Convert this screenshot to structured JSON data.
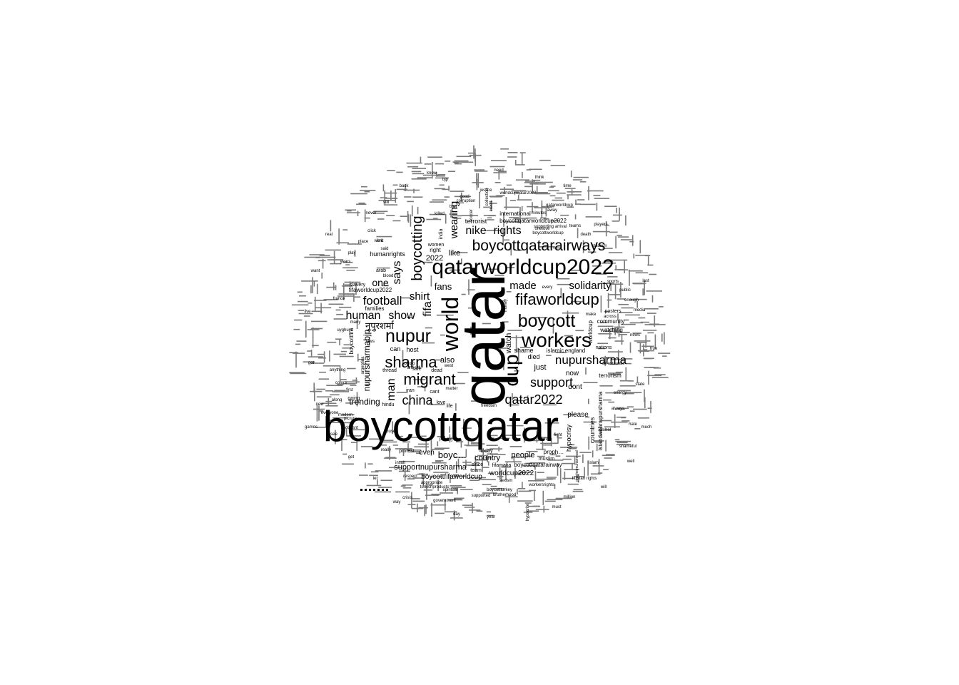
{
  "word_cloud": {
    "words": [
      {
        "text": "boycottqatar",
        "weight": 100
      },
      {
        "text": "qatar",
        "weight": 98
      },
      {
        "text": "qatarworldcup2022",
        "weight": 45
      },
      {
        "text": "workers",
        "weight": 38
      },
      {
        "text": "world",
        "weight": 36
      },
      {
        "text": "boycott",
        "weight": 36
      },
      {
        "text": "nupur",
        "weight": 34
      },
      {
        "text": "sharma",
        "weight": 34
      },
      {
        "text": "migrant",
        "weight": 32
      },
      {
        "text": "cup",
        "weight": 32
      },
      {
        "text": "fifaworldcup",
        "weight": 31
      },
      {
        "text": "boycottqatarairways",
        "weight": 29
      },
      {
        "text": "boycotting",
        "weight": 28
      },
      {
        "text": "china",
        "weight": 26
      },
      {
        "text": "support",
        "weight": 26
      },
      {
        "text": "qatar2022",
        "weight": 26
      },
      {
        "text": "nupursharma",
        "weight": 25
      },
      {
        "text": "football",
        "weight": 24
      },
      {
        "text": "human",
        "weight": 23
      },
      {
        "text": "show",
        "weight": 23
      },
      {
        "text": "says",
        "weight": 22
      },
      {
        "text": "fifa",
        "weight": 22
      },
      {
        "text": "man",
        "weight": 22
      },
      {
        "text": "nike",
        "weight": 22
      },
      {
        "text": "rights",
        "weight": 22
      },
      {
        "text": "shirt",
        "weight": 21
      },
      {
        "text": "wearing",
        "weight": 21
      },
      {
        "text": "made",
        "weight": 21
      },
      {
        "text": "solidarity",
        "weight": 21
      },
      {
        "text": "one",
        "weight": 20
      },
      {
        "text": "fans",
        "weight": 20
      },
      {
        "text": "नुपुरशर्मा",
        "weight": 19
      },
      {
        "text": "trending",
        "weight": 16
      },
      {
        "text": "nupursharmabjp",
        "weight": 15
      },
      {
        "text": "boycottfifaworldcup",
        "weight": 14
      },
      {
        "text": "supportnupursharma",
        "weight": 14
      },
      {
        "text": "worldcup2022",
        "weight": 14
      },
      {
        "text": "people",
        "weight": 14
      },
      {
        "text": "country",
        "weight": 14
      },
      {
        "text": "just",
        "weight": 14
      },
      {
        "text": "2022",
        "weight": 14
      },
      {
        "text": "like",
        "weight": 14
      },
      {
        "text": "also",
        "weight": 14
      },
      {
        "text": "even",
        "weight": 13
      },
      {
        "text": "boyc…",
        "weight": 15
      },
      {
        "text": "watch",
        "weight": 14
      },
      {
        "text": "now",
        "weight": 13
      },
      {
        "text": "dont",
        "weight": 13
      },
      {
        "text": "please",
        "weight": 13
      },
      {
        "text": "countries",
        "weight": 12
      },
      {
        "text": "hypocrisy",
        "weight": 12
      },
      {
        "text": "istandwithnupursharma",
        "weight": 11
      },
      {
        "text": "boycottqatarworldcup2022",
        "weight": 10
      },
      {
        "text": "humanrights",
        "weight": 11
      },
      {
        "text": "terrorist",
        "weight": 11
      },
      {
        "text": "international",
        "weight": 10
      },
      {
        "text": "shame",
        "weight": 11
      },
      {
        "text": "died",
        "weight": 11
      },
      {
        "text": "islamic",
        "weight": 10
      },
      {
        "text": "england",
        "weight": 10
      },
      {
        "text": "host",
        "weight": 11
      },
      {
        "text": "can",
        "weight": 11
      },
      {
        "text": "families",
        "weight": 10
      },
      {
        "text": "boycottfifa",
        "weight": 11
      },
      {
        "text": "fifaworldcup2022",
        "weight": 10
      },
      {
        "text": "boycottqatarairway",
        "weight": 10
      },
      {
        "text": "worldcup",
        "weight": 10
      },
      {
        "text": "community",
        "weight": 10
      },
      {
        "text": "watching",
        "weight": 10
      },
      {
        "text": "terrorism",
        "weight": 10
      },
      {
        "text": "nations",
        "weight": 9
      },
      {
        "text": "posters",
        "weight": 9
      },
      {
        "text": "proph…",
        "weight": 10
      },
      {
        "text": "right",
        "weight": 10
      },
      {
        "text": "women",
        "weight": 9
      },
      {
        "text": "thread",
        "weight": 9
      },
      {
        "text": "iran",
        "weight": 9
      },
      {
        "text": "hindu",
        "weight": 9
      },
      {
        "text": "since",
        "weight": 9
      },
      {
        "text": "team",
        "weight": 9
      },
      {
        "text": "today",
        "weight": 9
      },
      {
        "text": "muslim",
        "weight": 9
      },
      {
        "text": "arab",
        "weight": 9
      },
      {
        "text": "slavery",
        "weight": 9
      },
      {
        "text": "going",
        "weight": 9
      },
      {
        "text": "love",
        "weight": 9
      },
      {
        "text": "life",
        "weight": 9
      },
      {
        "text": "safe",
        "weight": 9
      },
      {
        "text": "dead",
        "weight": 9
      },
      {
        "text": "cant",
        "weight": 9
      },
      {
        "text": "protest",
        "weight": 9
      },
      {
        "text": "west",
        "weight": 9
      },
      {
        "text": "good",
        "weight": 8
      },
      {
        "text": "justice",
        "weight": 8
      },
      {
        "text": "bjp",
        "weight": 8
      },
      {
        "text": "india",
        "weight": 8
      },
      {
        "text": "killed",
        "weight": 8
      },
      {
        "text": "money",
        "weight": 8
      },
      {
        "text": "death",
        "weight": 8
      },
      {
        "text": "stand",
        "weight": 8
      },
      {
        "text": "many",
        "weight": 8
      },
      {
        "text": "uyghurs",
        "weight": 8
      },
      {
        "text": "argentina",
        "weight": 8
      },
      {
        "text": "france",
        "weight": 8
      },
      {
        "text": "minutes",
        "weight": 8
      },
      {
        "text": "supporting",
        "weight": 8
      },
      {
        "text": "onelove",
        "weight": 8
      },
      {
        "text": "arrival",
        "weight": 8
      },
      {
        "text": "away",
        "weight": 8
      },
      {
        "text": "qatarworldcup",
        "weight": 8
      },
      {
        "text": "fifamafia",
        "weight": 8
      },
      {
        "text": "sexism",
        "weight": 8
      },
      {
        "text": "brotherhood",
        "weight": 8
      },
      {
        "text": "appropriate",
        "weight": 8
      },
      {
        "text": "respect",
        "weight": 8
      },
      {
        "text": "government",
        "weight": 8
      },
      {
        "text": "supported",
        "weight": 8
      },
      {
        "text": "turkishproducts",
        "weight": 8
      },
      {
        "text": "prophetmuhammad",
        "weight": 7
      },
      {
        "text": "arrestzubair",
        "weight": 8
      },
      {
        "text": "enough",
        "weight": 8
      },
      {
        "text": "across",
        "weight": 7
      },
      {
        "text": "public",
        "weight": 7
      },
      {
        "text": "always",
        "weight": 7
      },
      {
        "text": "energy",
        "weight": 7
      },
      {
        "text": "anticall",
        "weight": 7
      },
      {
        "text": "photo",
        "weight": 7
      },
      {
        "text": "everyone",
        "weight": 7
      },
      {
        "text": "anything",
        "weight": 7
      },
      {
        "text": "picture",
        "weight": 7
      },
      {
        "text": "modern",
        "weight": 7
      },
      {
        "text": "laws",
        "weight": 7
      },
      {
        "text": "play",
        "weight": 7
      },
      {
        "text": "word",
        "weight": 7
      },
      {
        "text": "place",
        "weight": 7
      },
      {
        "text": "colors",
        "weight": 7
      },
      {
        "text": "along",
        "weight": 7
      },
      {
        "text": "first",
        "weight": 7
      },
      {
        "text": "years",
        "weight": 7
      },
      {
        "text": "freedom",
        "weight": 7
      },
      {
        "text": "matter",
        "weight": 7
      },
      {
        "text": "boycottturkey",
        "weight": 7
      },
      {
        "text": "workersrights",
        "weight": 7
      },
      {
        "text": "hypocrite",
        "weight": 7
      },
      {
        "text": "worldcupqatar2022",
        "weight": 7
      },
      {
        "text": "boycottworldcup",
        "weight": 7
      },
      {
        "text": "corruption",
        "weight": 7
      },
      {
        "text": "collection",
        "weight": 7
      },
      {
        "text": "credit",
        "weight": 7
      },
      {
        "text": "doesnt",
        "weight": 7
      },
      {
        "text": "really",
        "weight": 7
      },
      {
        "text": "playing",
        "weight": 7
      },
      {
        "text": "spiritual",
        "weight": 7
      },
      {
        "text": "crisis",
        "weight": 7
      },
      {
        "text": "soccer",
        "weight": 7
      },
      {
        "text": "ban",
        "weight": 7
      },
      {
        "text": "abuse",
        "weight": 7
      },
      {
        "text": "insult",
        "weight": 7
      },
      {
        "text": "fight",
        "weight": 7
      },
      {
        "text": "blood",
        "weight": 7
      },
      {
        "text": "million",
        "weight": 7
      },
      {
        "text": "sports",
        "weight": 7
      },
      {
        "text": "media",
        "weight": 7
      },
      {
        "text": "news",
        "weight": 7
      },
      {
        "text": "global",
        "weight": 7
      },
      {
        "text": "state",
        "weight": 7
      },
      {
        "text": "hate",
        "weight": 7
      },
      {
        "text": "shameful",
        "weight": 7
      },
      {
        "text": "islam",
        "weight": 7
      },
      {
        "text": "human rights",
        "weight": 7
      },
      {
        "text": "teams",
        "weight": 7
      },
      {
        "text": "players",
        "weight": 7
      },
      {
        "text": "stadium",
        "weight": 7
      },
      {
        "text": "time",
        "weight": 7
      },
      {
        "text": "think",
        "weight": 7
      },
      {
        "text": "need",
        "weight": 7
      },
      {
        "text": "know",
        "weight": 7
      },
      {
        "text": "make",
        "weight": 7
      },
      {
        "text": "back",
        "weight": 7
      },
      {
        "text": "still",
        "weight": 7
      },
      {
        "text": "never",
        "weight": 7
      },
      {
        "text": "every",
        "weight": 7
      },
      {
        "text": "real",
        "weight": 7
      },
      {
        "text": "want",
        "weight": 7
      },
      {
        "text": "live",
        "weight": 7
      },
      {
        "text": "ever",
        "weight": 7
      },
      {
        "text": "got",
        "weight": 7
      },
      {
        "text": "new",
        "weight": 7
      },
      {
        "text": "see",
        "weight": 7
      },
      {
        "text": "get",
        "weight": 7
      },
      {
        "text": "let",
        "weight": 7
      },
      {
        "text": "way",
        "weight": 7
      },
      {
        "text": "day",
        "weight": 7
      },
      {
        "text": "year",
        "weight": 7
      },
      {
        "text": "must",
        "weight": 7
      },
      {
        "text": "will",
        "weight": 7
      },
      {
        "text": "well",
        "weight": 7
      },
      {
        "text": "much",
        "weight": 7
      },
      {
        "text": "said",
        "weight": 7
      },
      {
        "text": "true",
        "weight": 7
      },
      {
        "text": "last",
        "weight": 7
      },
      {
        "text": "games",
        "weight": 7
      },
      {
        "text": "click",
        "weight": 7
      },
      {
        "text": "link",
        "weight": 7
      }
    ]
  }
}
